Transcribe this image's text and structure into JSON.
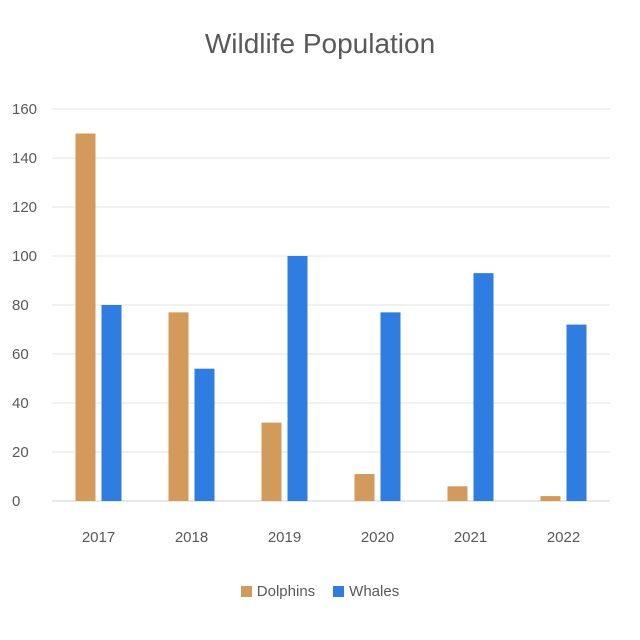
{
  "chart_data": {
    "type": "bar",
    "title": "Wildlife Population",
    "xlabel": "",
    "ylabel": "",
    "categories": [
      "2017",
      "2018",
      "2019",
      "2020",
      "2021",
      "2022"
    ],
    "series": [
      {
        "name": "Dolphins",
        "color": "#D39B5B",
        "values": [
          150,
          77,
          32,
          11,
          6,
          2
        ]
      },
      {
        "name": "Whales",
        "color": "#2F7DE1",
        "values": [
          80,
          54,
          100,
          77,
          93,
          72
        ]
      }
    ],
    "ylim": [
      0,
      160
    ],
    "yticks": [
      0,
      20,
      40,
      60,
      80,
      100,
      120,
      140,
      160
    ],
    "grid": true,
    "legend_position": "bottom"
  }
}
